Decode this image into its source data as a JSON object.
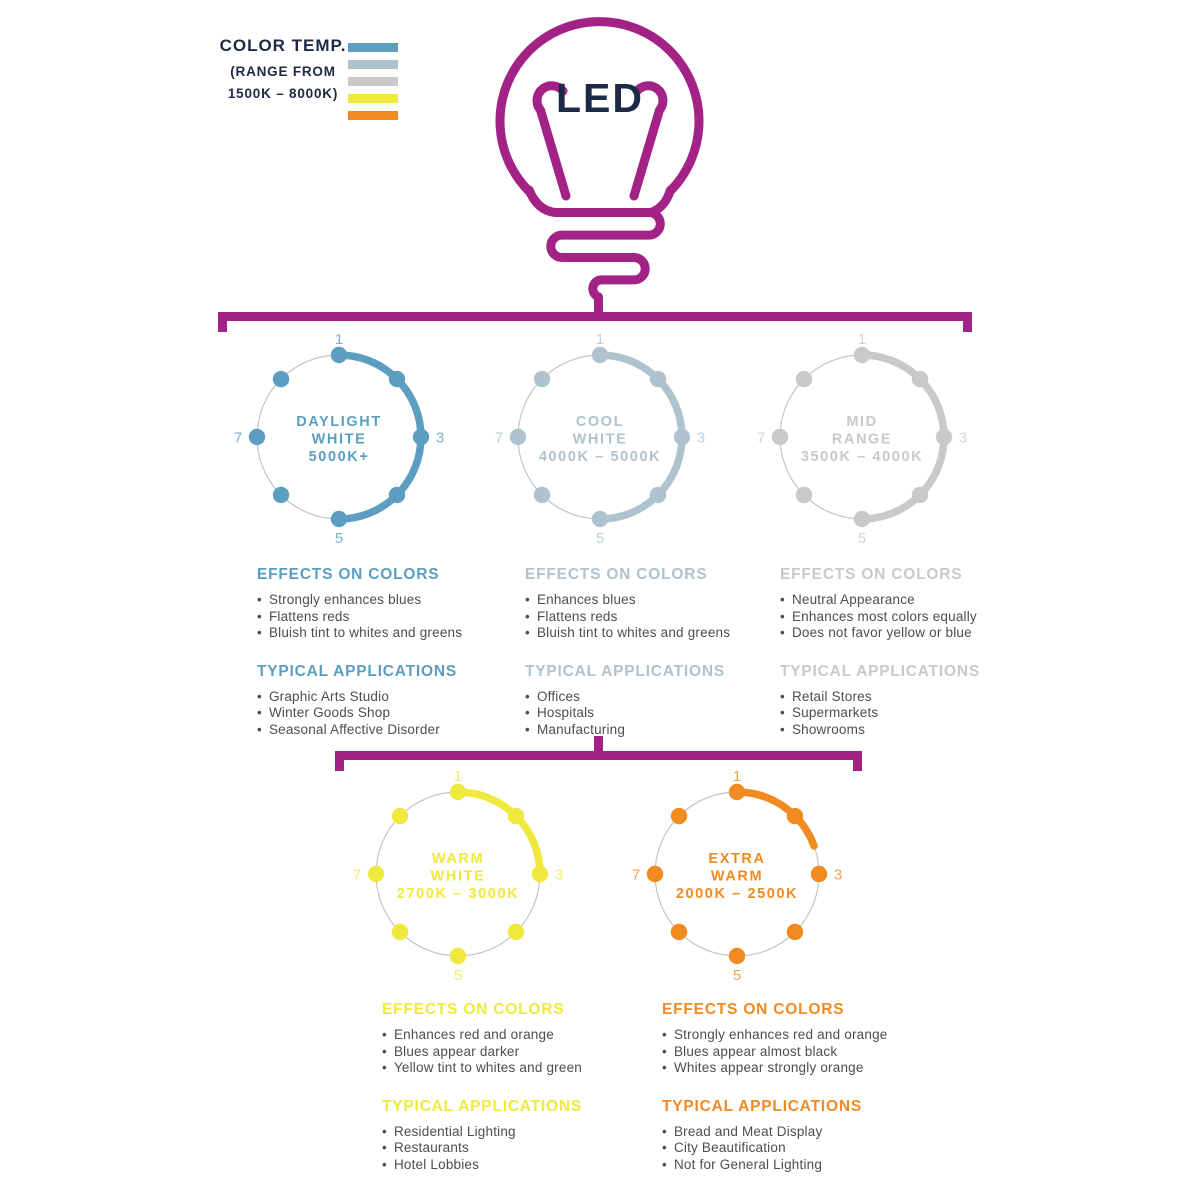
{
  "colors": {
    "accent_magenta": "#A22286",
    "navy": "#1C2A45",
    "bullet_text": "#4D4D4D",
    "thin_ring_gray": "#C4C4C4"
  },
  "legend": {
    "title": "COLOR TEMP.",
    "subtitle_line1": "(RANGE FROM",
    "subtitle_line2": "1500K – 8000K)",
    "bar_colors": [
      "#5B9EC1",
      "#AEC3CE",
      "#C9C9C9",
      "#F0E93D",
      "#F18A21"
    ]
  },
  "bulb": {
    "label": "LED"
  },
  "circles": [
    {
      "id": "daylight-white",
      "name_lines": [
        "DAYLIGHT",
        "WHITE"
      ],
      "range": "5000K+",
      "color": "#5B9EC1",
      "arc_deg": 180,
      "ticks": [
        "1",
        "3",
        "5",
        "7"
      ],
      "effects": {
        "title": "EFFECTS ON COLORS",
        "items": [
          "Strongly enhances blues",
          "Flattens reds",
          "Bluish tint to whites and greens"
        ]
      },
      "applications": {
        "title": "TYPICAL APPLICATIONS",
        "items": [
          "Graphic Arts Studio",
          "Winter Goods Shop",
          "Seasonal Affective Disorder"
        ]
      }
    },
    {
      "id": "cool-white",
      "name_lines": [
        "COOL",
        "WHITE"
      ],
      "range": "4000K – 5000K",
      "color": "#AEC3CE",
      "arc_deg": 180,
      "ticks": [
        "1",
        "3",
        "5",
        "7"
      ],
      "effects": {
        "title": "EFFECTS ON COLORS",
        "items": [
          "Enhances blues",
          "Flattens reds",
          "Bluish tint to whites and greens"
        ]
      },
      "applications": {
        "title": "TYPICAL APPLICATIONS",
        "items": [
          "Offices",
          "Hospitals",
          "Manufacturing"
        ]
      }
    },
    {
      "id": "mid-range",
      "name_lines": [
        "MID",
        "RANGE"
      ],
      "range": "3500K – 4000K",
      "color": "#C9C9C9",
      "arc_deg": 180,
      "ticks": [
        "1",
        "3",
        "5",
        "7"
      ],
      "effects": {
        "title": "EFFECTS ON COLORS",
        "items": [
          "Neutral Appearance",
          "Enhances most colors equally",
          "Does not favor yellow or blue"
        ]
      },
      "applications": {
        "title": "TYPICAL APPLICATIONS",
        "items": [
          "Retail Stores",
          "Supermarkets",
          "Showrooms"
        ]
      }
    },
    {
      "id": "warm-white",
      "name_lines": [
        "WARM",
        "WHITE"
      ],
      "range": "2700K – 3000K",
      "color": "#F0E93D",
      "arc_deg": 90,
      "ticks": [
        "1",
        "3",
        "5",
        "7"
      ],
      "effects": {
        "title": "EFFECTS ON COLORS",
        "items": [
          "Enhances red and orange",
          "Blues appear darker",
          "Yellow tint to whites and green"
        ]
      },
      "applications": {
        "title": "TYPICAL APPLICATIONS",
        "items": [
          "Residential Lighting",
          "Restaurants",
          "Hotel Lobbies"
        ]
      }
    },
    {
      "id": "extra-warm",
      "name_lines": [
        "EXTRA",
        "WARM"
      ],
      "range": "2000K – 2500K",
      "color": "#F18A21",
      "arc_deg": 70,
      "ticks": [
        "1",
        "3",
        "5",
        "7"
      ],
      "effects": {
        "title": "EFFECTS ON COLORS",
        "items": [
          "Strongly enhances red and orange",
          "Blues appear almost black",
          "Whites appear strongly orange"
        ]
      },
      "applications": {
        "title": "TYPICAL APPLICATIONS",
        "items": [
          "Bread and Meat Display",
          "City Beautification",
          "Not for General Lighting"
        ]
      }
    }
  ]
}
